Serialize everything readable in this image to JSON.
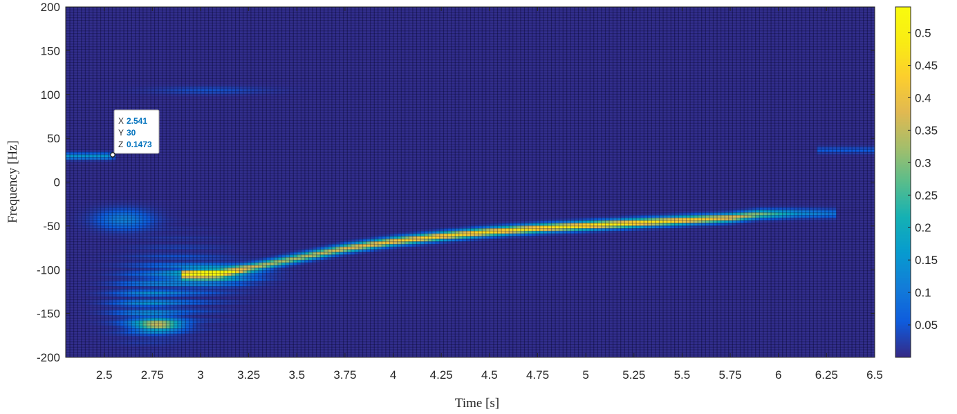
{
  "chart_data": {
    "type": "heatmap",
    "title": "",
    "xlabel": "Time [s]",
    "ylabel": "Frequency [Hz]",
    "xlim": [
      2.3,
      6.5
    ],
    "ylim": [
      -200,
      200
    ],
    "x_ticks": [
      "2.5",
      "2.75",
      "3",
      "3.25",
      "3.5",
      "3.75",
      "4",
      "4.25",
      "4.5",
      "4.75",
      "5",
      "5.25",
      "5.5",
      "5.75",
      "6",
      "6.25",
      "6.5"
    ],
    "y_ticks": [
      "200",
      "150",
      "100",
      "50",
      "0",
      "-50",
      "-100",
      "-150",
      "-200"
    ],
    "colormap": "parula",
    "clim": [
      0,
      0.54
    ],
    "colorbar_ticks": [
      "0.5",
      "0.45",
      "0.4",
      "0.35",
      "0.3",
      "0.25",
      "0.2",
      "0.15",
      "0.1",
      "0.05"
    ],
    "time_resolution_s": 0.02,
    "frequency_resolution_hz": 3,
    "features": [
      {
        "description": "steady tone",
        "t_start": 2.3,
        "t_end": 2.55,
        "freq_hz": 30,
        "peak": 0.15
      },
      {
        "description": "chirp ridge",
        "points": [
          {
            "t": 2.9,
            "f": -105,
            "z": 0.32
          },
          {
            "t": 3.1,
            "f": -103,
            "z": 0.36
          },
          {
            "t": 3.3,
            "f": -95,
            "z": 0.33
          },
          {
            "t": 3.5,
            "f": -86,
            "z": 0.33
          },
          {
            "t": 3.75,
            "f": -75,
            "z": 0.38
          },
          {
            "t": 4.0,
            "f": -67,
            "z": 0.42
          },
          {
            "t": 4.25,
            "f": -61,
            "z": 0.45
          },
          {
            "t": 4.5,
            "f": -56,
            "z": 0.46
          },
          {
            "t": 4.75,
            "f": -52,
            "z": 0.47
          },
          {
            "t": 5.0,
            "f": -49,
            "z": 0.48
          },
          {
            "t": 5.25,
            "f": -46,
            "z": 0.48
          },
          {
            "t": 5.5,
            "f": -43,
            "z": 0.45
          },
          {
            "t": 5.75,
            "f": -40,
            "z": 0.4
          },
          {
            "t": 5.9,
            "f": -36,
            "z": 0.3
          },
          {
            "t": 6.1,
            "f": -35,
            "z": 0.14
          },
          {
            "t": 6.3,
            "f": -35,
            "z": 0.09
          }
        ]
      },
      {
        "description": "low blob",
        "t": 2.78,
        "freq_hz": -162,
        "peak": 0.42
      },
      {
        "description": "mid blob",
        "t": 3.05,
        "freq_hz": -105,
        "peak": 0.3
      },
      {
        "description": "faint blob",
        "t": 2.6,
        "freq_hz": -42,
        "peak": 0.11
      },
      {
        "description": "faint line",
        "t_start": 2.8,
        "t_end": 3.3,
        "freq_hz": 105,
        "peak": 0.04
      },
      {
        "description": "faint line",
        "t_start": 6.2,
        "t_end": 6.5,
        "freq_hz": 37,
        "peak": 0.05
      }
    ],
    "datatip": {
      "x_label": "X",
      "x_value": "2.541",
      "y_label": "Y",
      "y_value": "30",
      "z_label": "Z",
      "z_value": "0.1473"
    }
  }
}
